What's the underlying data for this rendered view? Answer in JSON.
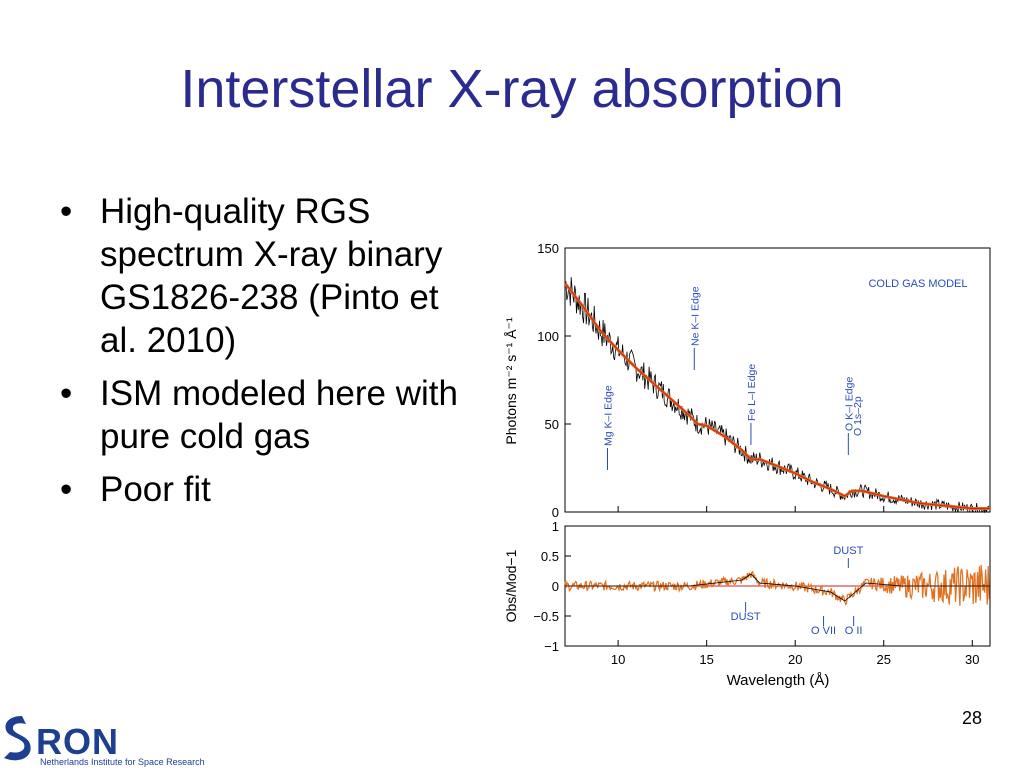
{
  "slide": {
    "title": "Interstellar X-ray absorption",
    "bullets": [
      "High-quality RGS spectrum X-ray binary GS1826-238 (Pinto et al. 2010)",
      "ISM modeled here with pure cold gas",
      "Poor fit"
    ],
    "page_number": "28"
  },
  "logo": {
    "name": "SRON",
    "subtitle": "Netherlands Institute for Space Research",
    "color": "#1d3f8f"
  },
  "chart_data": [
    {
      "type": "line",
      "panel": "top",
      "ylabel": "Photons m⁻² s⁻¹ Å⁻¹",
      "ylim": [
        0,
        150
      ],
      "yticks": [
        "0",
        "50",
        "100",
        "150"
      ],
      "xlim": [
        7,
        31
      ],
      "annotation": "COLD GAS MODEL",
      "edge_labels": [
        {
          "text": "Mg K–I Edge",
          "x": 9.4
        },
        {
          "text": "Ne K–I Edge",
          "x": 14.3
        },
        {
          "text": "Fe L–I Edge",
          "x": 17.5
        },
        {
          "text": "O K–I Edge",
          "x": 23.0
        },
        {
          "text": "O 1s–2p",
          "x": 23.5
        }
      ],
      "series": [
        {
          "x": [
            7,
            8,
            9,
            10,
            11,
            12,
            13,
            14,
            14.5,
            15,
            16,
            17,
            17.5,
            18,
            19,
            20,
            21,
            22,
            22.8,
            23.2,
            23.8,
            25,
            26,
            27,
            28,
            29,
            30,
            31
          ],
          "y": [
            130,
            117,
            103,
            92,
            82,
            73,
            64,
            55,
            50,
            49,
            43,
            35,
            30,
            30,
            26,
            22,
            17,
            13,
            9,
            12,
            12,
            9,
            7,
            5,
            4,
            3,
            2,
            2
          ]
        }
      ],
      "colors": {
        "data": "#000000",
        "model": "#e07020",
        "model_red": "#d02020",
        "labels": "#2a4bbf"
      }
    },
    {
      "type": "line",
      "panel": "bottom",
      "xlabel": "Wavelength (Å)",
      "ylabel": "Obs/Mod−1",
      "ylim": [
        -1,
        1
      ],
      "yticks": [
        "−1",
        "−0.5",
        "0",
        "0.5",
        "1"
      ],
      "xlim": [
        7,
        31
      ],
      "xticks": [
        "10",
        "15",
        "20",
        "25",
        "30"
      ],
      "xtick_values": [
        10,
        15,
        20,
        25,
        30
      ],
      "feature_labels": [
        {
          "text": "DUST",
          "x": 17.2
        },
        {
          "text": "DUST",
          "x": 23.0
        },
        {
          "text": "O VII",
          "x": 21.6
        },
        {
          "text": "O II",
          "x": 23.3
        }
      ],
      "series": [
        {
          "x": [
            7,
            10,
            14,
            17,
            17.5,
            18,
            20,
            22,
            22.8,
            23.2,
            24,
            26,
            28,
            30,
            31
          ],
          "y": [
            0,
            0,
            0,
            0.1,
            0.2,
            0.05,
            0,
            -0.1,
            -0.25,
            -0.15,
            0.05,
            0,
            0,
            0,
            0
          ]
        }
      ],
      "colors": {
        "data": "#000000",
        "model": "#e07020",
        "zero_line": "#d02020"
      }
    }
  ]
}
